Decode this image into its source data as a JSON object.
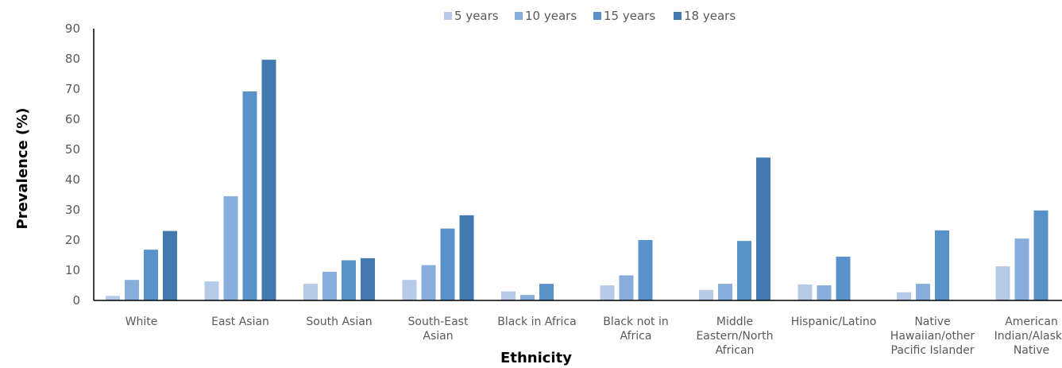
{
  "chart_data": {
    "type": "bar",
    "xlabel": "Ethnicity",
    "ylabel": "Prevalence (%)",
    "ylim": [
      0,
      90
    ],
    "yticks": [
      0,
      10,
      20,
      30,
      40,
      50,
      60,
      70,
      80,
      90
    ],
    "grid": false,
    "legend_position": "top",
    "categories": [
      [
        "White"
      ],
      [
        "East Asian"
      ],
      [
        "South Asian"
      ],
      [
        "South-East",
        "Asian"
      ],
      [
        "Black in Africa"
      ],
      [
        "Black not in",
        "Africa"
      ],
      [
        "Middle",
        "Eastern/North",
        "African"
      ],
      [
        "Hispanic/Latino"
      ],
      [
        "Native",
        "Hawaiian/other",
        "Pacific Islander"
      ],
      [
        "American",
        "Indian/Alaska",
        "Native"
      ]
    ],
    "series": [
      {
        "name": "5 years",
        "color": "#b4cae6",
        "values": [
          1.5,
          6.3,
          5.5,
          6.8,
          3.0,
          5.0,
          3.5,
          5.3,
          2.7,
          11.3
        ]
      },
      {
        "name": "10 years",
        "color": "#87aedb",
        "values": [
          6.8,
          34.5,
          9.5,
          11.7,
          1.8,
          8.3,
          5.5,
          5.0,
          5.5,
          20.5
        ]
      },
      {
        "name": "15 years",
        "color": "#5892c9",
        "values": [
          16.8,
          69.2,
          13.3,
          23.8,
          5.5,
          20.0,
          19.7,
          14.5,
          23.2,
          29.8
        ]
      },
      {
        "name": "18 years",
        "color": "#4279ae",
        "values": [
          23.0,
          79.7,
          14.0,
          28.2,
          null,
          null,
          47.3,
          null,
          null,
          null
        ]
      }
    ]
  }
}
